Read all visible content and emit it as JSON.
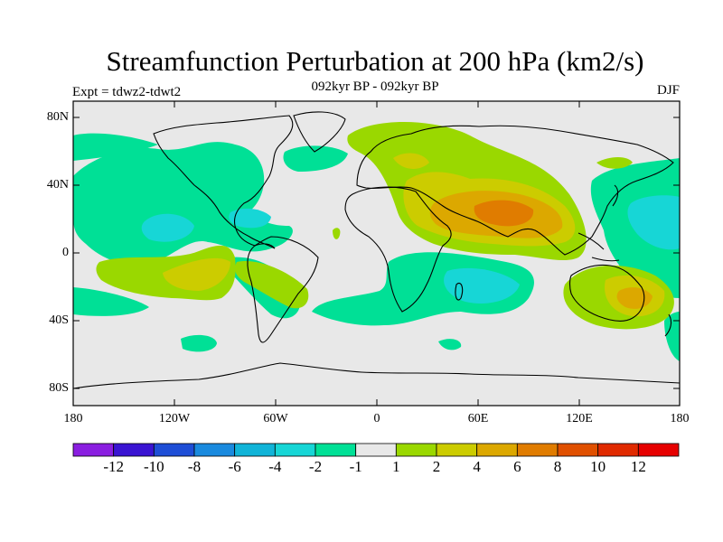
{
  "header": {
    "title": "Streamfunction Perturbation at 200 hPa (km2/s)",
    "subtitle": "092kyr BP - 092kyr BP",
    "experiment": "Expt = tdwz2-tdwt2",
    "season": "DJF"
  },
  "map": {
    "lat_labels": [
      "80N",
      "40N",
      "0",
      "40S",
      "80S"
    ],
    "lon_labels": [
      "180",
      "120W",
      "60W",
      "0",
      "60E",
      "120E",
      "180"
    ]
  },
  "legend": {
    "labels": [
      "-12",
      "-10",
      "-8",
      "-6",
      "-4",
      "-2",
      "-1",
      "1",
      "2",
      "4",
      "6",
      "8",
      "10",
      "12"
    ],
    "colors": [
      "#8a1ee0",
      "#3a14d2",
      "#1e4ed6",
      "#1a8ade",
      "#11b4d8",
      "#17d6d6",
      "#00e096",
      "#e8e8e8",
      "#9ad800",
      "#cccc00",
      "#dca800",
      "#e07c00",
      "#e05000",
      "#e02a00",
      "#e60000"
    ]
  },
  "colors": {
    "background": "#e8e8e8",
    "neg1": "#00e096",
    "neg2": "#17d6d6",
    "pos1": "#9ad800",
    "pos2": "#cccc00",
    "pos3": "#dca800",
    "pos4": "#e07c00"
  }
}
